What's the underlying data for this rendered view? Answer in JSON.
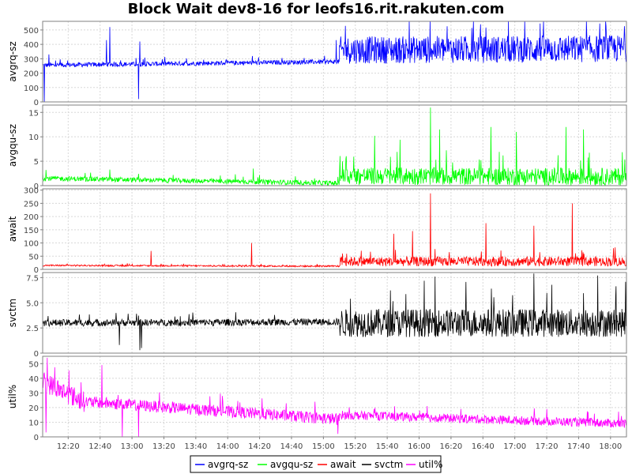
{
  "title": "Block Wait dev8-16 for leofs16.rit.rakuten.com",
  "chart_data": {
    "type": "line",
    "title": "Block Wait dev8-16 for leofs16.rit.rakuten.com",
    "x_ticks": [
      "12:20",
      "12:40",
      "13:00",
      "13:20",
      "13:40",
      "14:00",
      "14:20",
      "14:40",
      "15:00",
      "15:20",
      "15:40",
      "16:00",
      "16:20",
      "16:40",
      "17:00",
      "17:20",
      "17:40",
      "18:00"
    ],
    "x_range": [
      "12:04",
      "18:10"
    ],
    "grid": true,
    "legend_position": "bottom",
    "panels": [
      {
        "name": "avgrq-sz",
        "ylabel": "avgrq-sz",
        "color": "#0000ff",
        "ylim": [
          0,
          560
        ],
        "y_ticks": [
          0,
          100,
          200,
          300,
          400,
          500
        ],
        "y_tick_labels": [
          "0",
          "100",
          "200",
          "300",
          "400",
          "500"
        ],
        "segments": [
          {
            "from": "12:04",
            "to": "15:10",
            "base": [
              255,
              280
            ],
            "noise": 16
          },
          {
            "from": "15:10",
            "to": "18:10",
            "base": [
              360,
              370
            ],
            "noise": 95
          }
        ],
        "spikes": [
          [
            "12:05",
            0
          ],
          [
            "12:46",
            520
          ],
          [
            "12:44",
            430
          ],
          [
            "13:05",
            420
          ],
          [
            "13:04",
            20
          ],
          [
            "12:08",
            330
          ],
          [
            "15:08",
            430
          ],
          [
            "17:16",
            545
          ]
        ]
      },
      {
        "name": "avgqu-sz",
        "ylabel": "avgqu-sz",
        "color": "#00ff00",
        "ylim": [
          0,
          16.5
        ],
        "y_ticks": [
          0,
          5,
          10,
          15
        ],
        "y_tick_labels": [
          "0",
          "5",
          "10",
          "15"
        ],
        "segments": [
          {
            "from": "12:04",
            "to": "15:10",
            "base": [
              1.5,
              0.5
            ],
            "noise": 0.5
          },
          {
            "from": "15:10",
            "to": "18:10",
            "base": [
              2.0,
              1.8
            ],
            "noise": 1.8
          }
        ],
        "spikes": [
          [
            "12:06",
            3.2
          ],
          [
            "12:46",
            3.3
          ],
          [
            "14:16",
            3.5
          ],
          [
            "15:32",
            10.2
          ],
          [
            "15:48",
            9.4
          ],
          [
            "16:07",
            16.0
          ],
          [
            "16:13",
            11.5
          ],
          [
            "16:45",
            12.0
          ],
          [
            "17:01",
            11.0
          ],
          [
            "17:32",
            12.0
          ],
          [
            "17:43",
            11.5
          ],
          [
            "15:12",
            5.0
          ]
        ]
      },
      {
        "name": "await",
        "ylabel": "await",
        "color": "#ff0000",
        "ylim": [
          0,
          305
        ],
        "y_ticks": [
          0,
          50,
          100,
          150,
          200,
          250,
          300
        ],
        "y_tick_labels": [
          "0",
          "50",
          "100",
          "150",
          "200",
          "250",
          "300"
        ],
        "segments": [
          {
            "from": "12:04",
            "to": "15:10",
            "base": [
              15,
              12
            ],
            "noise": 3
          },
          {
            "from": "15:10",
            "to": "18:10",
            "base": [
              30,
              30
            ],
            "noise": 18
          }
        ],
        "spikes": [
          [
            "13:12",
            70
          ],
          [
            "14:15",
            100
          ],
          [
            "15:12",
            60
          ],
          [
            "15:44",
            135
          ],
          [
            "15:56",
            145
          ],
          [
            "16:07",
            288
          ],
          [
            "16:42",
            175
          ],
          [
            "17:12",
            165
          ],
          [
            "17:36",
            250
          ],
          [
            "18:02",
            80
          ]
        ]
      },
      {
        "name": "svctm",
        "ylabel": "svctm",
        "color": "#000000",
        "ylim": [
          0,
          8
        ],
        "y_ticks": [
          0,
          2.5,
          5,
          7.5
        ],
        "y_tick_labels": [
          "0",
          "2.5",
          "5.0",
          "7.5"
        ],
        "segments": [
          {
            "from": "12:04",
            "to": "15:10",
            "base": [
              3.0,
              3.1
            ],
            "noise": 0.35
          },
          {
            "from": "15:10",
            "to": "18:10",
            "base": [
              3.0,
              3.0
            ],
            "noise": 1.4
          }
        ],
        "spikes": [
          [
            "12:52",
            0.8
          ],
          [
            "13:05",
            0.3
          ],
          [
            "13:06",
            0.5
          ],
          [
            "17:12",
            7.9
          ],
          [
            "16:10",
            7.6
          ],
          [
            "17:52",
            7.7
          ]
        ]
      },
      {
        "name": "util%",
        "ylabel": "util%",
        "color": "#ff00ff",
        "ylim": [
          0,
          55
        ],
        "y_ticks": [
          0,
          10,
          20,
          30,
          40,
          50
        ],
        "y_tick_labels": [
          "0",
          "10",
          "20",
          "30",
          "40",
          "50"
        ],
        "segments": [
          {
            "from": "12:04",
            "to": "12:30",
            "base": [
              38,
              24
            ],
            "noise": 7
          },
          {
            "from": "12:30",
            "to": "15:10",
            "base": [
              24,
              12
            ],
            "noise": 4
          },
          {
            "from": "15:10",
            "to": "18:10",
            "base": [
              15,
              9
            ],
            "noise": 3
          }
        ],
        "spikes": [
          [
            "12:07",
            54
          ],
          [
            "12:06",
            3
          ],
          [
            "12:41",
            49
          ],
          [
            "12:54",
            0
          ],
          [
            "13:04",
            0
          ],
          [
            "15:09",
            2
          ],
          [
            "17:20",
            19
          ]
        ]
      }
    ],
    "legend": [
      "avgrq-sz",
      "avgqu-sz",
      "await",
      "svctm",
      "util%"
    ]
  }
}
